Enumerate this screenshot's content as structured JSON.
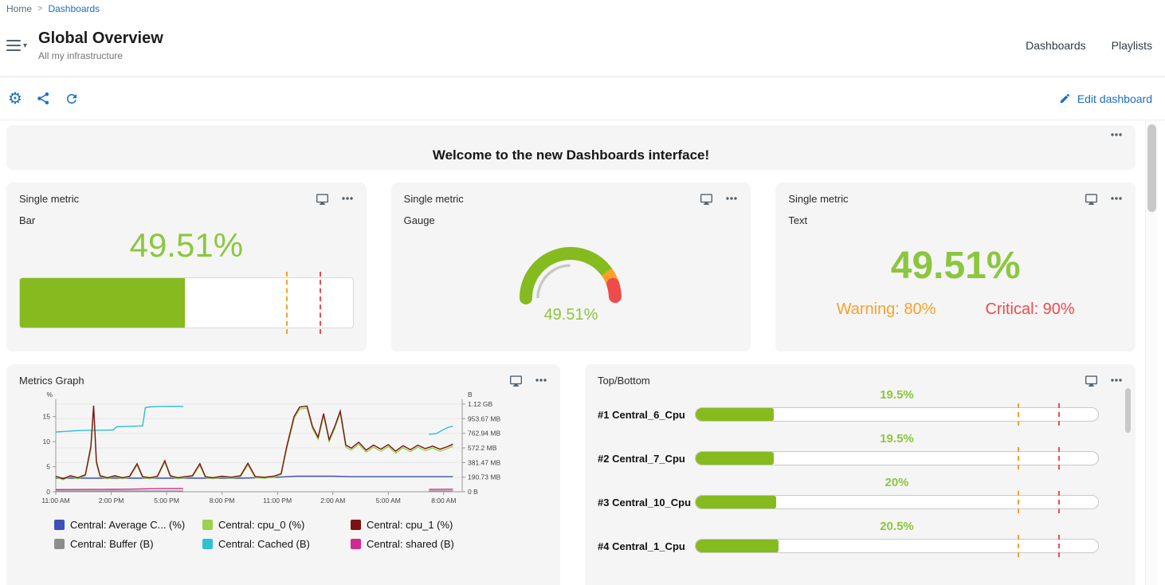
{
  "colors": {
    "accent": "#1b6ec2",
    "green": "#85bb1f",
    "green_text": "#8cc63f",
    "orange": "#f9a12c",
    "red": "#ef4b4b",
    "card_bg": "#f5f5f5",
    "icon_gray": "#51606d"
  },
  "breadcrumb": {
    "home": "Home",
    "separator": ">",
    "current": "Dashboards"
  },
  "header": {
    "title": "Global Overview",
    "subtitle": "All my infrastructure",
    "nav": [
      {
        "label": "Dashboards"
      },
      {
        "label": "Playlists"
      }
    ]
  },
  "toolbar": {
    "edit_label": "Edit dashboard"
  },
  "welcome": {
    "title": "Welcome to the new Dashboards interface!"
  },
  "single_metric_cards": [
    {
      "title": "Single metric",
      "subtitle": "Bar",
      "value": "49.51%",
      "percent": 49.51,
      "warning": 80,
      "critical": 90,
      "max": 100
    },
    {
      "title": "Single metric",
      "subtitle": "Gauge",
      "value": "49.51%",
      "percent": 49.51,
      "warning": 80,
      "critical": 90,
      "max": 100
    },
    {
      "title": "Single metric",
      "subtitle": "Text",
      "value": "49.51%",
      "warning_label": "Warning: 80%",
      "critical_label": "Critical: 90%"
    }
  ],
  "metrics_graph": {
    "title": "Metrics Graph",
    "chart_data": {
      "type": "line",
      "x_unit": "hours from 11:00 AM",
      "x_range": [
        0,
        22
      ],
      "x_tick_hours": [
        0,
        3,
        6,
        9,
        12,
        15,
        18,
        21
      ],
      "x_tick_labels": [
        "11:00 AM",
        "2:00 PM",
        "5:00 PM",
        "8:00 PM",
        "11:00 PM",
        "2:00 AM",
        "5:00 AM",
        "8:00 AM"
      ],
      "left_axis": {
        "label": "%",
        "ticks": [
          0,
          5,
          10,
          15
        ],
        "ylim": [
          0,
          17.5
        ]
      },
      "right_axis": {
        "label": "B",
        "tick_labels": [
          "0 B",
          "190.73 MB",
          "381.47 MB",
          "572.2 MB",
          "762.94 MB",
          "953.67 MB",
          "1.12 GB"
        ],
        "ylim_mb": [
          0,
          1144.4
        ]
      },
      "grid": true,
      "legend_position": "bottom",
      "series": [
        {
          "name": "Central: Average C... (%)",
          "color": "#3f51b5",
          "axis": "left",
          "segments": [
            [
              [
                0,
                2.7
              ],
              [
                2,
                2.7
              ],
              [
                4,
                2.7
              ],
              [
                6,
                2.7
              ],
              [
                8,
                2.7
              ],
              [
                10,
                2.7
              ],
              [
                12,
                2.9
              ],
              [
                13,
                3.1
              ],
              [
                14,
                3.1
              ],
              [
                15,
                3.1
              ],
              [
                16,
                3.0
              ],
              [
                17,
                3.0
              ],
              [
                18,
                3.0
              ],
              [
                19,
                3.0
              ],
              [
                20,
                3.0
              ],
              [
                21.5,
                3.0
              ]
            ]
          ]
        },
        {
          "name": "Central: Buffer (B)",
          "color": "#8d8d8d",
          "axis": "right",
          "segments": [
            [
              [
                0,
                9
              ],
              [
                2,
                9
              ],
              [
                4,
                9.5
              ],
              [
                6,
                9.5
              ],
              [
                6.9,
                9.5
              ]
            ],
            [
              [
                20.2,
                9
              ],
              [
                21,
                9
              ],
              [
                21.5,
                9
              ]
            ]
          ]
        },
        {
          "name": "Central: shared (B)",
          "color": "#d02990",
          "axis": "right",
          "segments": [
            [
              [
                0,
                28
              ],
              [
                1,
                29
              ],
              [
                2,
                30
              ],
              [
                3,
                31
              ],
              [
                4,
                33
              ],
              [
                4.9,
                38
              ],
              [
                5.4,
                41
              ],
              [
                6,
                43
              ],
              [
                6.9,
                43
              ]
            ],
            [
              [
                20.2,
                30
              ],
              [
                21,
                32
              ],
              [
                21.5,
                33
              ]
            ]
          ]
        },
        {
          "name": "Central: Cached (B)",
          "color": "#2fc0d4",
          "axis": "right",
          "segments": [
            [
              [
                0,
                780
              ],
              [
                0.5,
                788
              ],
              [
                1,
                796
              ],
              [
                1.5,
                800
              ],
              [
                2,
                802
              ],
              [
                2.6,
                804
              ],
              [
                3.1,
                806
              ],
              [
                3.3,
                848
              ],
              [
                3.9,
                852
              ],
              [
                4.3,
                856
              ],
              [
                4.7,
                860
              ],
              [
                4.85,
                1098
              ],
              [
                5.1,
                1108
              ],
              [
                5.6,
                1112
              ],
              [
                6.2,
                1113
              ],
              [
                6.9,
                1114
              ]
            ],
            [
              [
                20.2,
                750
              ],
              [
                20.6,
                758
              ],
              [
                20.9,
                800
              ],
              [
                21.2,
                838
              ],
              [
                21.5,
                855
              ]
            ]
          ]
        },
        {
          "name": "Central: cpu_0 (%)",
          "color": "#97d34f",
          "axis": "left",
          "segments": [
            [
              [
                0,
                2.9
              ],
              [
                0.4,
                2.4
              ],
              [
                0.8,
                3.0
              ],
              [
                1.2,
                2.6
              ],
              [
                1.6,
                3.2
              ],
              [
                1.9,
                8.5
              ],
              [
                2.05,
                16.7
              ],
              [
                2.2,
                5.6
              ],
              [
                2.4,
                3.0
              ],
              [
                2.8,
                2.6
              ],
              [
                3.2,
                3.0
              ],
              [
                3.6,
                2.6
              ],
              [
                4,
                2.9
              ],
              [
                4.4,
                5.3
              ],
              [
                4.7,
                2.8
              ],
              [
                5.1,
                2.6
              ],
              [
                5.5,
                2.9
              ],
              [
                5.9,
                5.9
              ],
              [
                6.2,
                3.0
              ],
              [
                6.6,
                2.6
              ],
              [
                7,
                2.8
              ],
              [
                7.4,
                3.0
              ],
              [
                7.8,
                5.3
              ],
              [
                8.1,
                2.8
              ],
              [
                8.5,
                2.6
              ],
              [
                9,
                2.9
              ],
              [
                9.5,
                2.7
              ],
              [
                10,
                3.0
              ],
              [
                10.4,
                5.4
              ],
              [
                10.8,
                2.8
              ],
              [
                11.3,
                2.7
              ],
              [
                11.8,
                2.9
              ],
              [
                12.2,
                3.4
              ],
              [
                12.5,
                8.6
              ],
              [
                12.9,
                14.6
              ],
              [
                13.2,
                16.5
              ],
              [
                13.6,
                16.7
              ],
              [
                13.9,
                12.6
              ],
              [
                14.2,
                10.5
              ],
              [
                14.5,
                15.2
              ],
              [
                14.8,
                10.0
              ],
              [
                15.1,
                12.6
              ],
              [
                15.4,
                15.7
              ],
              [
                15.7,
                8.9
              ],
              [
                16,
                8.3
              ],
              [
                16.4,
                9.5
              ],
              [
                16.8,
                7.9
              ],
              [
                17.2,
                8.9
              ],
              [
                17.6,
                8.1
              ],
              [
                18,
                9.0
              ],
              [
                18.4,
                7.7
              ],
              [
                18.8,
                8.8
              ],
              [
                19.2,
                8.0
              ],
              [
                19.6,
                8.9
              ],
              [
                20,
                8.2
              ],
              [
                20.4,
                8.7
              ],
              [
                20.8,
                8.1
              ],
              [
                21.2,
                8.6
              ],
              [
                21.5,
                9.1
              ]
            ]
          ]
        },
        {
          "name": "Central: cpu_1 (%)",
          "color": "#7b1214",
          "axis": "left",
          "segments": [
            [
              [
                0,
                3.1
              ],
              [
                0.4,
                2.6
              ],
              [
                0.8,
                3.2
              ],
              [
                1.2,
                2.8
              ],
              [
                1.6,
                3.4
              ],
              [
                1.9,
                9.0
              ],
              [
                2.05,
                17.2
              ],
              [
                2.2,
                6.0
              ],
              [
                2.4,
                3.2
              ],
              [
                2.8,
                2.8
              ],
              [
                3.2,
                3.2
              ],
              [
                3.6,
                2.8
              ],
              [
                4,
                3.1
              ],
              [
                4.4,
                5.6
              ],
              [
                4.7,
                3.0
              ],
              [
                5.1,
                2.8
              ],
              [
                5.5,
                3.1
              ],
              [
                5.9,
                6.2
              ],
              [
                6.2,
                3.2
              ],
              [
                6.6,
                2.8
              ],
              [
                7,
                3.0
              ],
              [
                7.4,
                3.2
              ],
              [
                7.8,
                5.6
              ],
              [
                8.1,
                3.0
              ],
              [
                8.5,
                2.8
              ],
              [
                9,
                3.1
              ],
              [
                9.5,
                2.9
              ],
              [
                10,
                3.2
              ],
              [
                10.4,
                5.7
              ],
              [
                10.8,
                3.0
              ],
              [
                11.3,
                2.9
              ],
              [
                11.8,
                3.1
              ],
              [
                12.2,
                3.6
              ],
              [
                12.5,
                9.0
              ],
              [
                12.9,
                15.0
              ],
              [
                13.2,
                16.9
              ],
              [
                13.6,
                17.1
              ],
              [
                13.9,
                13.0
              ],
              [
                14.2,
                10.9
              ],
              [
                14.5,
                15.6
              ],
              [
                14.8,
                10.4
              ],
              [
                15.1,
                13.0
              ],
              [
                15.4,
                16.1
              ],
              [
                15.7,
                9.3
              ],
              [
                16,
                8.7
              ],
              [
                16.4,
                9.9
              ],
              [
                16.8,
                8.3
              ],
              [
                17.2,
                9.3
              ],
              [
                17.6,
                8.5
              ],
              [
                18,
                9.4
              ],
              [
                18.4,
                8.1
              ],
              [
                18.8,
                9.2
              ],
              [
                19.2,
                8.4
              ],
              [
                19.6,
                9.3
              ],
              [
                20,
                8.6
              ],
              [
                20.4,
                9.1
              ],
              [
                20.8,
                8.5
              ],
              [
                21.2,
                9.0
              ],
              [
                21.5,
                9.5
              ]
            ]
          ]
        }
      ],
      "legend_order": [
        "Central: Average C... (%)",
        "Central: cpu_0 (%)",
        "Central: cpu_1 (%)",
        "Central: Buffer (B)",
        "Central: Cached (B)",
        "Central: shared (B)"
      ]
    }
  },
  "top_bottom": {
    "title": "Top/Bottom",
    "chart_data": {
      "type": "bar",
      "max": 100,
      "warning": 80,
      "critical": 90,
      "items": [
        {
          "rank": "#1",
          "name": "Central_6_Cpu",
          "label": "#1 Central_6_Cpu",
          "value": 19.5,
          "value_label": "19.5%"
        },
        {
          "rank": "#2",
          "name": "Central_7_Cpu",
          "label": "#2 Central_7_Cpu",
          "value": 19.5,
          "value_label": "19.5%"
        },
        {
          "rank": "#3",
          "name": "Central_10_Cpu",
          "label": "#3 Central_10_Cpu",
          "value": 20,
          "value_label": "20%"
        },
        {
          "rank": "#4",
          "name": "Central_1_Cpu",
          "label": "#4 Central_1_Cpu",
          "value": 20.5,
          "value_label": "20.5%"
        }
      ]
    }
  }
}
